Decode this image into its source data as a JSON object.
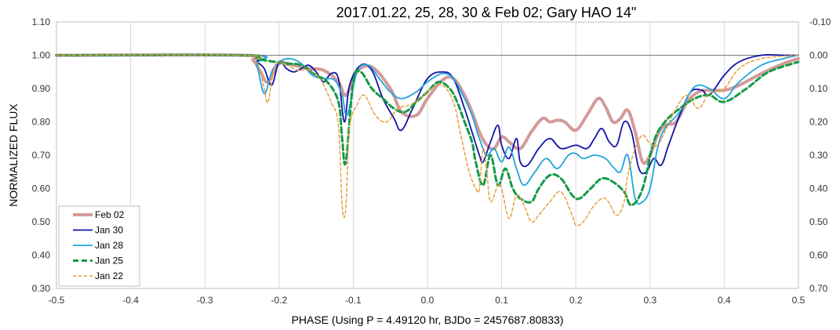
{
  "chart_data": {
    "type": "line",
    "title": "2017.01.22, 25, 28, 30 & Feb 02; Gary HAO 14\"",
    "xlabel": "PHASE (Using P = 4.49120 hr, BJDo = 2457687.80833)",
    "ylabel": "NORMALIZED FLUX",
    "xlim": [
      -0.5,
      0.5
    ],
    "ylim": [
      0.3,
      1.1
    ],
    "y2lim": [
      0.7,
      -0.1
    ],
    "x_ticks": [
      "-0.5",
      "-0.4",
      "-0.3",
      "-0.2",
      "-0.1",
      "0.0",
      "0.1",
      "0.2",
      "0.3",
      "0.4",
      "0.5"
    ],
    "y_ticks": [
      "0.30",
      "0.40",
      "0.50",
      "0.60",
      "0.70",
      "0.80",
      "0.90",
      "1.00",
      "1.10"
    ],
    "y2_ticks": [
      "0.70",
      "0.60",
      "0.50",
      "0.40",
      "0.30",
      "0.20",
      "0.10",
      "0.00",
      "-0.10"
    ],
    "reference_line": 1.0,
    "grid": "vertical",
    "legend_position": "bottom-left",
    "series": [
      {
        "name": "Feb 02",
        "color": "#d49a9a",
        "style": "solid-thick",
        "x": [
          -0.5,
          -0.25,
          -0.235,
          -0.225,
          -0.215,
          -0.2,
          -0.18,
          -0.16,
          -0.14,
          -0.12,
          -0.11,
          -0.095,
          -0.075,
          -0.05,
          -0.035,
          -0.015,
          0.0,
          0.02,
          0.035,
          0.05,
          0.06,
          0.07,
          0.08,
          0.09,
          0.1,
          0.11,
          0.125,
          0.14,
          0.155,
          0.165,
          0.175,
          0.185,
          0.2,
          0.215,
          0.23,
          0.24,
          0.25,
          0.26,
          0.27,
          0.28,
          0.29,
          0.3,
          0.31,
          0.32,
          0.335,
          0.35,
          0.365,
          0.38,
          0.4,
          0.42,
          0.45,
          0.48,
          0.5
        ],
        "y": [
          1.0,
          1.0,
          0.985,
          0.95,
          0.92,
          0.975,
          0.97,
          0.96,
          0.955,
          0.92,
          0.88,
          0.95,
          0.965,
          0.9,
          0.83,
          0.82,
          0.87,
          0.925,
          0.93,
          0.88,
          0.83,
          0.77,
          0.73,
          0.72,
          0.755,
          0.74,
          0.72,
          0.77,
          0.81,
          0.8,
          0.805,
          0.8,
          0.775,
          0.82,
          0.87,
          0.845,
          0.8,
          0.81,
          0.835,
          0.77,
          0.68,
          0.7,
          0.76,
          0.79,
          0.8,
          0.86,
          0.89,
          0.895,
          0.895,
          0.91,
          0.945,
          0.975,
          0.99
        ]
      },
      {
        "name": "Jan 30",
        "color": "#1414a8",
        "style": "solid",
        "x": [
          -0.5,
          -0.24,
          -0.23,
          -0.22,
          -0.21,
          -0.2,
          -0.19,
          -0.18,
          -0.17,
          -0.16,
          -0.15,
          -0.14,
          -0.13,
          -0.12,
          -0.112,
          -0.105,
          -0.09,
          -0.075,
          -0.06,
          -0.045,
          -0.035,
          -0.02,
          0.0,
          0.02,
          0.035,
          0.05,
          0.06,
          0.07,
          0.075,
          0.085,
          0.095,
          0.1,
          0.11,
          0.12,
          0.125,
          0.135,
          0.15,
          0.165,
          0.18,
          0.2,
          0.215,
          0.225,
          0.235,
          0.245,
          0.255,
          0.265,
          0.275,
          0.285,
          0.295,
          0.305,
          0.315,
          0.325,
          0.34,
          0.355,
          0.37,
          0.38,
          0.4,
          0.42,
          0.45,
          0.48,
          0.5
        ],
        "y": [
          1.0,
          1.0,
          0.98,
          0.96,
          0.91,
          0.98,
          0.96,
          0.95,
          0.96,
          0.97,
          0.95,
          0.92,
          0.945,
          0.93,
          0.8,
          0.91,
          0.97,
          0.955,
          0.87,
          0.81,
          0.775,
          0.84,
          0.93,
          0.95,
          0.93,
          0.84,
          0.77,
          0.7,
          0.68,
          0.74,
          0.79,
          0.73,
          0.69,
          0.75,
          0.68,
          0.67,
          0.72,
          0.75,
          0.72,
          0.73,
          0.72,
          0.75,
          0.78,
          0.74,
          0.73,
          0.8,
          0.77,
          0.66,
          0.65,
          0.69,
          0.67,
          0.73,
          0.82,
          0.89,
          0.895,
          0.88,
          0.94,
          0.98,
          1.0,
          1.0,
          1.0
        ]
      },
      {
        "name": "Jan 28",
        "color": "#21a4dc",
        "style": "solid",
        "x": [
          -0.5,
          -0.24,
          -0.23,
          -0.22,
          -0.21,
          -0.2,
          -0.185,
          -0.17,
          -0.155,
          -0.14,
          -0.125,
          -0.115,
          -0.108,
          -0.095,
          -0.08,
          -0.065,
          -0.05,
          -0.035,
          -0.015,
          0.0,
          0.02,
          0.035,
          0.05,
          0.06,
          0.07,
          0.08,
          0.09,
          0.1,
          0.11,
          0.12,
          0.13,
          0.145,
          0.16,
          0.175,
          0.19,
          0.2,
          0.21,
          0.225,
          0.24,
          0.25,
          0.26,
          0.27,
          0.28,
          0.29,
          0.3,
          0.31,
          0.32,
          0.34,
          0.36,
          0.38,
          0.4,
          0.42,
          0.45,
          0.48,
          0.5
        ],
        "y": [
          1.0,
          1.0,
          0.97,
          0.885,
          0.95,
          0.98,
          0.99,
          0.975,
          0.94,
          0.93,
          0.925,
          0.88,
          0.82,
          0.95,
          0.97,
          0.93,
          0.89,
          0.87,
          0.89,
          0.92,
          0.945,
          0.93,
          0.87,
          0.82,
          0.75,
          0.7,
          0.72,
          0.68,
          0.725,
          0.66,
          0.61,
          0.65,
          0.69,
          0.66,
          0.7,
          0.705,
          0.69,
          0.7,
          0.69,
          0.665,
          0.65,
          0.7,
          0.57,
          0.56,
          0.6,
          0.72,
          0.78,
          0.83,
          0.905,
          0.9,
          0.87,
          0.92,
          0.97,
          0.99,
          1.0
        ]
      },
      {
        "name": "Jan 25",
        "color": "#149a48",
        "style": "dashed-thick",
        "x": [
          -0.5,
          -0.25,
          -0.23,
          -0.22,
          -0.205,
          -0.19,
          -0.17,
          -0.15,
          -0.135,
          -0.12,
          -0.115,
          -0.11,
          -0.1,
          -0.09,
          -0.075,
          -0.06,
          -0.045,
          -0.03,
          -0.015,
          0.0,
          0.015,
          0.03,
          0.04,
          0.05,
          0.06,
          0.065,
          0.075,
          0.085,
          0.095,
          0.105,
          0.115,
          0.125,
          0.14,
          0.15,
          0.165,
          0.18,
          0.195,
          0.205,
          0.22,
          0.235,
          0.25,
          0.265,
          0.275,
          0.29,
          0.305,
          0.32,
          0.34,
          0.36,
          0.38,
          0.4,
          0.43,
          0.46,
          0.5
        ],
        "y": [
          1.0,
          1.0,
          0.99,
          0.985,
          0.98,
          0.975,
          0.97,
          0.94,
          0.92,
          0.86,
          0.75,
          0.68,
          0.92,
          0.95,
          0.9,
          0.87,
          0.84,
          0.83,
          0.86,
          0.89,
          0.92,
          0.9,
          0.86,
          0.8,
          0.74,
          0.68,
          0.61,
          0.7,
          0.61,
          0.66,
          0.6,
          0.57,
          0.56,
          0.6,
          0.64,
          0.63,
          0.58,
          0.57,
          0.6,
          0.63,
          0.62,
          0.59,
          0.55,
          0.6,
          0.74,
          0.8,
          0.84,
          0.87,
          0.88,
          0.86,
          0.9,
          0.95,
          0.98
        ]
      },
      {
        "name": "Jan 22",
        "color": "#e6a040",
        "style": "dashed",
        "x": [
          -0.5,
          -0.25,
          -0.23,
          -0.22,
          -0.215,
          -0.205,
          -0.19,
          -0.175,
          -0.16,
          -0.145,
          -0.13,
          -0.12,
          -0.115,
          -0.11,
          -0.105,
          -0.095,
          -0.085,
          -0.07,
          -0.055,
          -0.04,
          -0.025,
          -0.01,
          0.005,
          0.02,
          0.035,
          0.045,
          0.055,
          0.065,
          0.07,
          0.075,
          0.08,
          0.085,
          0.095,
          0.1,
          0.11,
          0.12,
          0.13,
          0.14,
          0.15,
          0.165,
          0.18,
          0.195,
          0.2,
          0.21,
          0.225,
          0.24,
          0.255,
          0.265,
          0.27,
          0.28,
          0.29,
          0.3,
          0.31,
          0.32,
          0.335,
          0.35,
          0.365,
          0.38,
          0.4,
          0.42,
          0.45,
          0.5
        ],
        "y": [
          1.0,
          1.0,
          0.98,
          0.9,
          0.86,
          0.97,
          0.97,
          0.955,
          0.955,
          0.93,
          0.86,
          0.79,
          0.55,
          0.54,
          0.78,
          0.85,
          0.88,
          0.82,
          0.8,
          0.84,
          0.85,
          0.87,
          0.9,
          0.91,
          0.86,
          0.76,
          0.66,
          0.6,
          0.6,
          0.72,
          0.65,
          0.56,
          0.61,
          0.6,
          0.51,
          0.58,
          0.55,
          0.5,
          0.52,
          0.56,
          0.59,
          0.52,
          0.49,
          0.5,
          0.55,
          0.57,
          0.52,
          0.56,
          0.64,
          0.72,
          0.76,
          0.735,
          0.73,
          0.77,
          0.84,
          0.88,
          0.84,
          0.885,
          0.9,
          0.96,
          0.99,
          1.0
        ]
      }
    ]
  }
}
